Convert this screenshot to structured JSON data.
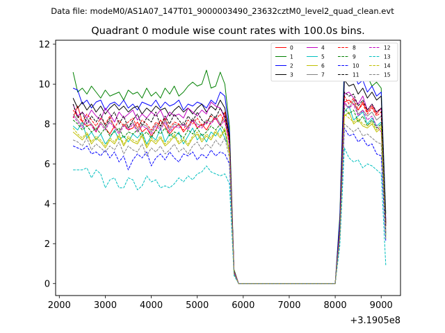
{
  "suptitle": "Data file: modeM0/AS1A07_147T01_9000003490_23632cztM0_level2_quad_clean.evt",
  "chart_data": {
    "type": "line",
    "title": "Quadrant 0 module wise count rates with 100.0s bins.",
    "xlabel": "",
    "ylabel": "",
    "x_offset_label": "+3.1905e8",
    "x_offset": 319050000,
    "xlim": [
      1920,
      9420
    ],
    "ylim": [
      -0.6,
      12.2
    ],
    "xticks": [
      2000,
      3000,
      4000,
      5000,
      6000,
      7000,
      8000,
      9000
    ],
    "xtick_labels": [
      "2000",
      "3000",
      "4000",
      "5000",
      "6000",
      "7000",
      "8000",
      "9000"
    ],
    "yticks": [
      0,
      2,
      4,
      6,
      8,
      10,
      12
    ],
    "ytick_labels": [
      "0",
      "2",
      "4",
      "6",
      "8",
      "10",
      "12"
    ],
    "grid": false,
    "legend_position": "upper right",
    "legend_columns": 4,
    "x": [
      2300,
      2400,
      2500,
      2600,
      2700,
      2800,
      2900,
      3000,
      3100,
      3200,
      3300,
      3400,
      3500,
      3600,
      3700,
      3800,
      3900,
      4000,
      4100,
      4200,
      4300,
      4400,
      4500,
      4600,
      4700,
      4800,
      4900,
      5000,
      5100,
      5200,
      5300,
      5400,
      5500,
      5600,
      5700,
      5800,
      5900,
      6000,
      6100,
      6200,
      6300,
      6400,
      6500,
      6600,
      6700,
      6800,
      6900,
      7000,
      7100,
      7200,
      7300,
      7400,
      7500,
      7600,
      7700,
      7800,
      7900,
      8000,
      8100,
      8200,
      8300,
      8400,
      8500,
      8600,
      8700,
      8800,
      8900,
      9000,
      9100
    ],
    "series": [
      {
        "name": "0",
        "color": "#ff0000",
        "dash": "solid",
        "values": [
          8.3,
          8.9,
          8.1,
          7.9,
          8.0,
          7.6,
          8.1,
          7.8,
          7.5,
          7.9,
          7.6,
          8.0,
          7.7,
          7.8,
          8.1,
          7.6,
          7.8,
          7.4,
          7.7,
          8.2,
          7.9,
          7.5,
          7.8,
          8.0,
          7.6,
          7.9,
          8.2,
          7.8,
          8.0,
          7.7,
          8.1,
          8.3,
          7.9,
          8.6,
          7.2,
          0.6,
          0,
          0,
          0,
          0,
          0,
          0,
          0,
          0,
          0,
          0,
          0,
          0,
          0,
          0,
          0,
          0,
          0,
          0,
          0,
          0,
          0,
          0,
          2.4,
          9.1,
          9.2,
          9.0,
          8.7,
          9.1,
          8.6,
          8.9,
          8.5,
          8.8,
          3.1
        ]
      },
      {
        "name": "1",
        "color": "#008000",
        "dash": "solid",
        "values": [
          10.6,
          9.6,
          9.8,
          9.5,
          9.9,
          9.6,
          9.3,
          9.7,
          9.4,
          9.5,
          9.6,
          9.2,
          9.7,
          9.5,
          9.6,
          9.3,
          9.8,
          9.4,
          9.6,
          9.3,
          9.8,
          9.5,
          9.9,
          9.4,
          9.6,
          9.9,
          10.1,
          9.9,
          10.0,
          10.7,
          9.8,
          9.9,
          10.6,
          10.0,
          7.9,
          0.7,
          0,
          0,
          0,
          0,
          0,
          0,
          0,
          0,
          0,
          0,
          0,
          0,
          0,
          0,
          0,
          0,
          0,
          0,
          0,
          0,
          0,
          0,
          3.4,
          11.2,
          10.9,
          11.5,
          10.6,
          10.2,
          10.4,
          9.9,
          10.1,
          9.8,
          3.5
        ]
      },
      {
        "name": "2",
        "color": "#0000ff",
        "dash": "solid",
        "values": [
          9.8,
          9.7,
          9.0,
          9.2,
          8.8,
          9.1,
          9.2,
          8.7,
          9.0,
          9.1,
          8.9,
          9.2,
          8.8,
          9.0,
          8.7,
          9.1,
          9.0,
          8.9,
          9.2,
          8.8,
          9.1,
          8.9,
          9.0,
          9.2,
          8.7,
          9.0,
          8.9,
          9.1,
          9.0,
          8.8,
          9.2,
          9.0,
          9.6,
          9.4,
          7.6,
          0.6,
          0,
          0,
          0,
          0,
          0,
          0,
          0,
          0,
          0,
          0,
          0,
          0,
          0,
          0,
          0,
          0,
          0,
          0,
          0,
          0,
          0,
          0,
          3.2,
          10.8,
          10.3,
          10.6,
          10.0,
          10.2,
          9.6,
          9.9,
          9.4,
          9.6,
          3.2
        ]
      },
      {
        "name": "3",
        "color": "#000000",
        "dash": "solid",
        "values": [
          9.3,
          8.8,
          9.1,
          8.7,
          9.0,
          8.6,
          8.9,
          8.5,
          8.8,
          9.0,
          8.7,
          8.9,
          8.6,
          8.8,
          8.9,
          8.5,
          8.8,
          8.6,
          8.9,
          8.7,
          8.8,
          8.4,
          8.7,
          8.9,
          8.6,
          8.8,
          8.5,
          8.8,
          9.0,
          8.6,
          8.9,
          8.7,
          9.2,
          8.8,
          7.4,
          0.6,
          0,
          0,
          0,
          0,
          0,
          0,
          0,
          0,
          0,
          0,
          0,
          0,
          0,
          0,
          0,
          0,
          0,
          0,
          0,
          0,
          0,
          0,
          2.8,
          10.2,
          9.9,
          10.0,
          9.5,
          9.8,
          9.3,
          9.6,
          9.2,
          9.4,
          3.0
        ]
      },
      {
        "name": "4",
        "color": "#c000c0",
        "dash": "solid",
        "values": [
          9.0,
          8.4,
          8.6,
          8.3,
          8.7,
          8.4,
          8.2,
          8.8,
          8.5,
          8.1,
          8.6,
          8.3,
          8.5,
          8.7,
          8.2,
          8.5,
          8.3,
          8.6,
          8.4,
          8.7,
          8.2,
          8.6,
          8.4,
          8.5,
          8.3,
          8.8,
          8.6,
          8.4,
          8.7,
          8.5,
          9.1,
          8.9,
          8.8,
          8.3,
          7.0,
          0.6,
          0,
          0,
          0,
          0,
          0,
          0,
          0,
          0,
          0,
          0,
          0,
          0,
          0,
          0,
          0,
          0,
          0,
          0,
          0,
          0,
          0,
          0,
          2.6,
          9.5,
          9.6,
          9.3,
          9.0,
          9.4,
          8.7,
          9.0,
          8.6,
          8.8,
          2.9
        ]
      },
      {
        "name": "5",
        "color": "#00bfbf",
        "dash": "solid",
        "values": [
          7.9,
          7.7,
          8.1,
          7.3,
          7.6,
          7.2,
          7.5,
          7.0,
          7.3,
          7.7,
          7.2,
          7.4,
          7.1,
          7.5,
          7.3,
          7.6,
          7.0,
          7.4,
          7.2,
          7.8,
          7.1,
          7.5,
          7.3,
          7.6,
          7.0,
          7.4,
          7.8,
          7.2,
          7.5,
          7.1,
          7.6,
          7.4,
          7.8,
          7.3,
          6.8,
          0.5,
          0,
          0,
          0,
          0,
          0,
          0,
          0,
          0,
          0,
          0,
          0,
          0,
          0,
          0,
          0,
          0,
          0,
          0,
          0,
          0,
          0,
          0,
          2.5,
          8.6,
          8.9,
          8.2,
          8.4,
          8.6,
          8.0,
          8.3,
          7.9,
          8.1,
          2.4
        ]
      },
      {
        "name": "6",
        "color": "#bfbf00",
        "dash": "solid",
        "values": [
          7.6,
          7.4,
          7.2,
          7.5,
          7.0,
          7.3,
          7.1,
          6.8,
          7.2,
          7.0,
          7.4,
          6.9,
          7.3,
          7.1,
          7.0,
          7.4,
          6.8,
          7.2,
          7.0,
          7.3,
          6.9,
          7.1,
          7.4,
          7.0,
          7.2,
          6.9,
          7.3,
          7.5,
          7.1,
          7.4,
          7.2,
          7.6,
          7.3,
          7.7,
          6.5,
          0.5,
          0,
          0,
          0,
          0,
          0,
          0,
          0,
          0,
          0,
          0,
          0,
          0,
          0,
          0,
          0,
          0,
          0,
          0,
          0,
          0,
          0,
          0,
          2.4,
          8.4,
          8.6,
          8.0,
          8.2,
          7.9,
          7.8,
          8.0,
          7.6,
          7.8,
          2.3
        ]
      },
      {
        "name": "7",
        "color": "#808080",
        "dash": "solid",
        "values": [
          8.5,
          8.2,
          7.9,
          8.3,
          8.0,
          7.7,
          8.1,
          7.8,
          8.2,
          7.9,
          7.6,
          8.0,
          7.8,
          8.1,
          7.7,
          8.0,
          7.9,
          7.6,
          8.0,
          7.8,
          8.2,
          7.7,
          8.0,
          7.9,
          8.1,
          7.8,
          8.3,
          8.0,
          7.9,
          8.2,
          8.1,
          8.4,
          8.0,
          8.3,
          7.0,
          0.6,
          0,
          0,
          0,
          0,
          0,
          0,
          0,
          0,
          0,
          0,
          0,
          0,
          0,
          0,
          0,
          0,
          0,
          0,
          0,
          0,
          0,
          0,
          2.6,
          9.0,
          8.8,
          9.2,
          8.5,
          8.7,
          8.4,
          8.6,
          8.2,
          8.4,
          2.7
        ]
      },
      {
        "name": "8",
        "color": "#ff0000",
        "dash": "dashed",
        "values": [
          8.7,
          8.4,
          8.1,
          8.5,
          8.2,
          7.9,
          8.3,
          8.0,
          8.4,
          7.8,
          8.2,
          7.9,
          8.1,
          8.3,
          7.8,
          8.2,
          8.0,
          7.7,
          8.1,
          7.9,
          8.3,
          7.8,
          8.1,
          8.0,
          7.7,
          8.2,
          8.0,
          8.3,
          7.9,
          8.1,
          8.4,
          8.2,
          8.5,
          8.1,
          7.1,
          0.6,
          0,
          0,
          0,
          0,
          0,
          0,
          0,
          0,
          0,
          0,
          0,
          0,
          0,
          0,
          0,
          0,
          0,
          0,
          0,
          0,
          0,
          0,
          2.7,
          9.4,
          9.0,
          9.3,
          8.7,
          9.0,
          8.5,
          8.8,
          8.4,
          8.6,
          2.9
        ]
      },
      {
        "name": "9",
        "color": "#008000",
        "dash": "dashed",
        "values": [
          8.2,
          8.0,
          7.7,
          7.9,
          7.6,
          7.8,
          7.5,
          7.8,
          7.4,
          7.6,
          7.8,
          7.3,
          7.6,
          7.5,
          7.7,
          7.4,
          7.6,
          7.3,
          7.7,
          7.5,
          7.8,
          7.4,
          7.6,
          7.5,
          7.3,
          7.7,
          7.5,
          7.8,
          7.4,
          7.6,
          7.9,
          7.7,
          8.0,
          7.6,
          6.7,
          0.5,
          0,
          0,
          0,
          0,
          0,
          0,
          0,
          0,
          0,
          0,
          0,
          0,
          0,
          0,
          0,
          0,
          0,
          0,
          0,
          0,
          0,
          0,
          2.5,
          8.8,
          8.5,
          8.7,
          8.1,
          8.4,
          7.9,
          8.2,
          7.8,
          8.0,
          2.5
        ]
      },
      {
        "name": "10",
        "color": "#0000ff",
        "dash": "dashed",
        "values": [
          6.9,
          6.8,
          6.7,
          6.9,
          6.5,
          6.6,
          6.4,
          6.7,
          6.3,
          6.6,
          6.1,
          6.4,
          5.7,
          6.2,
          6.5,
          6.3,
          6.6,
          5.9,
          6.3,
          6.5,
          6.2,
          6.6,
          6.3,
          6.1,
          6.5,
          6.4,
          6.6,
          6.2,
          6.5,
          6.3,
          6.7,
          6.4,
          6.6,
          6.5,
          6.0,
          0.5,
          0,
          0,
          0,
          0,
          0,
          0,
          0,
          0,
          0,
          0,
          0,
          0,
          0,
          0,
          0,
          0,
          0,
          0,
          0,
          0,
          0,
          0,
          2.2,
          7.8,
          7.4,
          7.5,
          7.1,
          7.3,
          6.9,
          7.0,
          6.5,
          6.4,
          2.1
        ]
      },
      {
        "name": "11",
        "color": "#000000",
        "dash": "dashed",
        "values": [
          9.0,
          8.3,
          8.6,
          8.0,
          8.4,
          8.1,
          8.5,
          7.9,
          8.3,
          8.6,
          8.0,
          8.4,
          7.8,
          8.2,
          8.5,
          7.9,
          8.3,
          8.1,
          8.6,
          7.9,
          8.4,
          8.0,
          8.5,
          8.2,
          7.9,
          8.4,
          8.1,
          8.6,
          8.2,
          8.0,
          8.5,
          8.3,
          8.8,
          8.4,
          7.3,
          0.6,
          0,
          0,
          0,
          0,
          0,
          0,
          0,
          0,
          0,
          0,
          0,
          0,
          0,
          0,
          0,
          0,
          0,
          0,
          0,
          0,
          0,
          0,
          2.7,
          9.6,
          9.4,
          9.5,
          8.9,
          9.2,
          8.7,
          9.0,
          8.6,
          8.8,
          2.9
        ]
      },
      {
        "name": "12",
        "color": "#c000c0",
        "dash": "dashed",
        "values": [
          8.4,
          8.1,
          7.8,
          8.2,
          7.9,
          7.6,
          8.0,
          7.7,
          8.1,
          7.8,
          7.5,
          7.9,
          7.7,
          8.0,
          7.6,
          7.9,
          7.8,
          7.5,
          7.9,
          7.7,
          8.1,
          7.6,
          7.9,
          7.8,
          8.0,
          7.7,
          8.2,
          7.9,
          7.8,
          8.1,
          8.0,
          8.3,
          7.9,
          8.2,
          6.9,
          0.6,
          0,
          0,
          0,
          0,
          0,
          0,
          0,
          0,
          0,
          0,
          0,
          0,
          0,
          0,
          0,
          0,
          0,
          0,
          0,
          0,
          0,
          0,
          2.6,
          9.1,
          8.8,
          9.0,
          8.4,
          8.7,
          8.2,
          8.4,
          7.9,
          7.6,
          2.6
        ]
      },
      {
        "name": "13",
        "color": "#00bfbf",
        "dash": "dashed",
        "values": [
          5.7,
          5.7,
          5.7,
          5.8,
          5.3,
          5.7,
          5.5,
          4.8,
          5.2,
          5.3,
          4.8,
          4.8,
          5.3,
          5.2,
          4.7,
          4.9,
          5.4,
          5.1,
          5.2,
          4.8,
          4.9,
          4.8,
          5.0,
          5.3,
          5.1,
          5.4,
          5.2,
          5.5,
          5.6,
          5.9,
          5.6,
          5.5,
          5.4,
          5.5,
          5.0,
          0.4,
          0,
          0,
          0,
          0,
          0,
          0,
          0,
          0,
          0,
          0,
          0,
          0,
          0,
          0,
          0,
          0,
          0,
          0,
          0,
          0,
          0,
          0,
          1.9,
          6.8,
          6.3,
          6.1,
          6.2,
          5.8,
          6.0,
          5.9,
          5.7,
          5.5,
          0.9
        ]
      },
      {
        "name": "14",
        "color": "#bfbf00",
        "dash": "dashed",
        "values": [
          7.8,
          7.5,
          7.3,
          7.6,
          7.1,
          7.4,
          7.2,
          6.9,
          7.3,
          7.1,
          7.5,
          7.0,
          7.4,
          7.2,
          7.1,
          7.5,
          6.9,
          7.3,
          7.1,
          7.4,
          7.0,
          7.2,
          7.5,
          7.1,
          7.3,
          7.0,
          7.4,
          7.6,
          7.2,
          7.5,
          7.3,
          7.7,
          7.4,
          7.8,
          6.6,
          0.5,
          0,
          0,
          0,
          0,
          0,
          0,
          0,
          0,
          0,
          0,
          0,
          0,
          0,
          0,
          0,
          0,
          0,
          0,
          0,
          0,
          0,
          0,
          2.4,
          8.5,
          8.3,
          8.1,
          8.3,
          8.0,
          7.9,
          8.1,
          7.7,
          7.9,
          2.4
        ]
      },
      {
        "name": "15",
        "color": "#808080",
        "dash": "dashed",
        "values": [
          7.2,
          7.1,
          6.9,
          7.3,
          6.7,
          7.0,
          6.8,
          6.6,
          6.9,
          6.7,
          7.1,
          6.5,
          6.9,
          6.7,
          6.6,
          7.0,
          6.4,
          6.8,
          6.6,
          6.9,
          6.5,
          6.7,
          7.0,
          6.6,
          6.8,
          6.5,
          6.9,
          7.1,
          6.7,
          7.0,
          6.8,
          7.2,
          6.9,
          7.3,
          6.3,
          0.5,
          0,
          0,
          0,
          0,
          0,
          0,
          0,
          0,
          0,
          0,
          0,
          0,
          0,
          0,
          0,
          0,
          0,
          0,
          0,
          0,
          0,
          0,
          2.3,
          8.0,
          7.8,
          7.6,
          7.8,
          7.4,
          7.5,
          7.3,
          7.1,
          7.0,
          2.2
        ]
      }
    ]
  }
}
